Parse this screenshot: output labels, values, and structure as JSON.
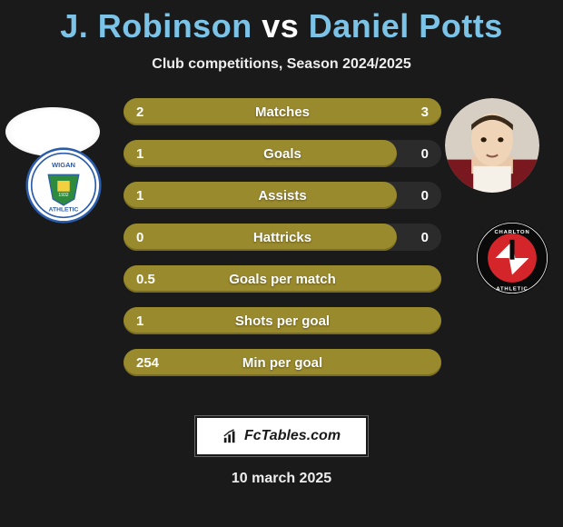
{
  "title": {
    "player1": "J. Robinson",
    "vs": "vs",
    "player2": "Daniel Potts",
    "player1_color": "#7bc4e8",
    "vs_color": "#ffffff",
    "player2_color": "#7bc4e8"
  },
  "subtitle": "Club competitions, Season 2024/2025",
  "stats": {
    "bar_color": "#9a8a2e",
    "bar_color_dark": "#7a6d20",
    "rows": [
      {
        "left": "2",
        "label": "Matches",
        "right": "3",
        "fill_pct": 100
      },
      {
        "left": "1",
        "label": "Goals",
        "right": "0",
        "fill_pct": 86
      },
      {
        "left": "1",
        "label": "Assists",
        "right": "0",
        "fill_pct": 86
      },
      {
        "left": "0",
        "label": "Hattricks",
        "right": "0",
        "fill_pct": 86
      },
      {
        "left": "0.5",
        "label": "Goals per match",
        "right": "",
        "fill_pct": 100
      },
      {
        "left": "1",
        "label": "Shots per goal",
        "right": "",
        "fill_pct": 100
      },
      {
        "left": "254",
        "label": "Min per goal",
        "right": "",
        "fill_pct": 100
      }
    ]
  },
  "branding": "FcTables.com",
  "date": "10 march 2025",
  "badges": {
    "left_name": "Wigan Athletic",
    "right_name": "Charlton Athletic"
  },
  "colors": {
    "bg": "#1a1a1a",
    "text": "#ffffff",
    "wigan_blue": "#2a5caa",
    "wigan_green": "#2e8b3d",
    "charlton_red": "#d4262a",
    "charlton_black": "#0a0a0a"
  }
}
